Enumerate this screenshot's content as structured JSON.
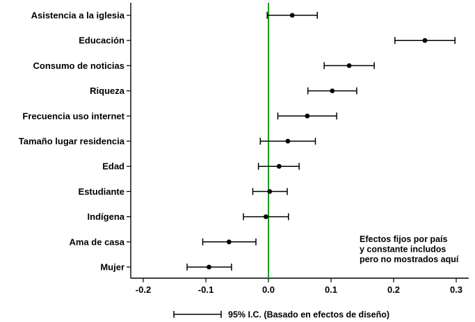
{
  "chart_data": {
    "type": "scatter",
    "subtype": "coefficient-plot-with-error-bars",
    "categories": [
      "Asistencia a la iglesia",
      "Educación",
      "Consumo de noticias",
      "Riqueza",
      "Frecuencia uso internet",
      "Tamaño lugar residencia",
      "Edad",
      "Estudiante",
      "Indígena",
      "Ama de casa",
      "Mujer"
    ],
    "estimates": [
      0.038,
      0.25,
      0.129,
      0.102,
      0.062,
      0.031,
      0.017,
      0.002,
      -0.004,
      -0.063,
      -0.095
    ],
    "ci_low": [
      -0.002,
      0.202,
      0.089,
      0.063,
      0.015,
      -0.013,
      -0.016,
      -0.025,
      -0.04,
      -0.105,
      -0.13
    ],
    "ci_high": [
      0.078,
      0.298,
      0.169,
      0.141,
      0.109,
      0.075,
      0.049,
      0.03,
      0.032,
      -0.02,
      -0.059
    ],
    "xlim": [
      -0.22,
      0.32
    ],
    "xticks": [
      "-0.2",
      "-0.1",
      "0.0",
      "0.1",
      "0.2",
      "0.3"
    ],
    "reference_line": {
      "x": 0,
      "color": "#1a9c1a"
    },
    "marker_color": "#000000",
    "annotation": [
      "Efectos fijos por país",
      "y constante includos",
      "pero no mostrados aquí"
    ],
    "legend": {
      "label": "95% I.C. (Basado en efectos de diseño)",
      "placement": "bottom"
    },
    "grid": false
  }
}
